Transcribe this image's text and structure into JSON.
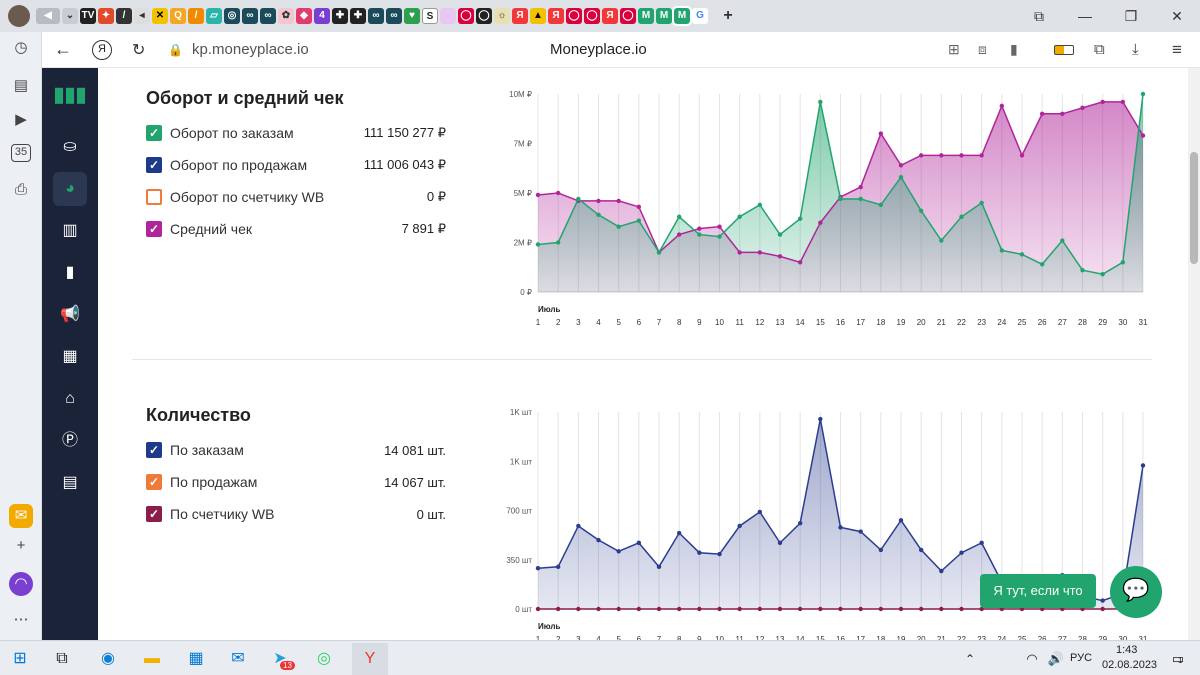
{
  "browser": {
    "url": "kp.moneyplace.io",
    "page_title": "Moneyplace.io"
  },
  "section1": {
    "title": "Оборот и средний чек",
    "legend": [
      {
        "label": "Оборот по заказам",
        "value": "111 150 277 ₽",
        "color": "#22a46e",
        "checked": true
      },
      {
        "label": "Оборот по продажам",
        "value": "111 006 043 ₽",
        "color": "#1e3a8a",
        "checked": true
      },
      {
        "label": "Оборот по счетчику WB",
        "value": "0 ₽",
        "color": "#f07a3a",
        "checked": false
      },
      {
        "label": "Средний чек",
        "value": "7 891 ₽",
        "color": "#b0269a",
        "checked": true
      }
    ]
  },
  "section2": {
    "title": "Количество",
    "legend": [
      {
        "label": "По заказам",
        "value": "14 081 шт.",
        "color": "#1e3a8a",
        "checked": true
      },
      {
        "label": "По продажам",
        "value": "14 067 шт.",
        "color": "#f07a3a",
        "checked": true
      },
      {
        "label": "По счетчику WB",
        "value": "0 шт.",
        "color": "#8a1e4a",
        "checked": true
      }
    ]
  },
  "chart_data": [
    {
      "type": "area",
      "month_label": "Июль",
      "x": [
        1,
        2,
        3,
        4,
        5,
        6,
        7,
        8,
        9,
        10,
        11,
        12,
        13,
        14,
        15,
        16,
        17,
        18,
        19,
        20,
        21,
        22,
        23,
        24,
        25,
        26,
        27,
        28,
        29,
        30,
        31
      ],
      "y_ticks": [
        "10M ₽",
        "7M ₽",
        "5M ₽",
        "2M ₽",
        "0 ₽"
      ],
      "ylim": [
        0,
        10
      ],
      "series": [
        {
          "name": "Средний чек",
          "color": "#b0269a",
          "values": [
            4.9,
            5.0,
            4.6,
            4.6,
            4.6,
            4.3,
            2.0,
            2.9,
            3.2,
            3.3,
            2.0,
            2.0,
            1.8,
            1.5,
            3.5,
            4.8,
            5.3,
            8.0,
            6.4,
            6.9,
            6.9,
            6.9,
            6.9,
            9.4,
            6.9,
            9.0,
            9.0,
            9.3,
            9.6,
            9.6,
            7.9
          ]
        },
        {
          "name": "Оборот по заказам",
          "color": "#22a46e",
          "values": [
            2.4,
            2.5,
            4.7,
            3.9,
            3.3,
            3.6,
            2.0,
            3.8,
            2.9,
            2.8,
            3.8,
            4.4,
            2.9,
            3.7,
            9.6,
            4.7,
            4.7,
            4.4,
            5.8,
            4.1,
            2.6,
            3.8,
            4.5,
            2.1,
            1.9,
            1.4,
            2.6,
            1.1,
            0.9,
            1.5,
            10.0
          ]
        }
      ]
    },
    {
      "type": "area",
      "month_label": "Июль",
      "x": [
        1,
        2,
        3,
        4,
        5,
        6,
        7,
        8,
        9,
        10,
        11,
        12,
        13,
        14,
        15,
        16,
        17,
        18,
        19,
        20,
        21,
        22,
        23,
        24,
        25,
        26,
        27,
        28,
        29,
        30,
        31
      ],
      "y_ticks": [
        "1K шт",
        "1K шт",
        "700 шт",
        "350 шт",
        "0 шт"
      ],
      "ylim": [
        0,
        1400
      ],
      "series": [
        {
          "name": "По заказам",
          "color": "#2a3d8f",
          "values": [
            290,
            300,
            590,
            490,
            410,
            470,
            300,
            540,
            400,
            390,
            590,
            690,
            470,
            610,
            1350,
            580,
            550,
            420,
            630,
            420,
            270,
            400,
            470,
            190,
            120,
            150,
            240,
            90,
            60,
            110,
            1020
          ]
        },
        {
          "name": "По счетчику WB",
          "color": "#8a1e4a",
          "values": [
            0,
            0,
            0,
            0,
            0,
            0,
            0,
            0,
            0,
            0,
            0,
            0,
            0,
            0,
            0,
            0,
            0,
            0,
            0,
            0,
            0,
            0,
            0,
            0,
            0,
            0,
            0,
            0,
            0,
            0,
            0
          ]
        }
      ]
    }
  ],
  "chat": {
    "label": "Я тут, если что"
  },
  "taskbar": {
    "lang": "РУС",
    "time": "1:43",
    "date": "02.08.2023",
    "telegram_badge": "13",
    "notif_count": "1"
  }
}
